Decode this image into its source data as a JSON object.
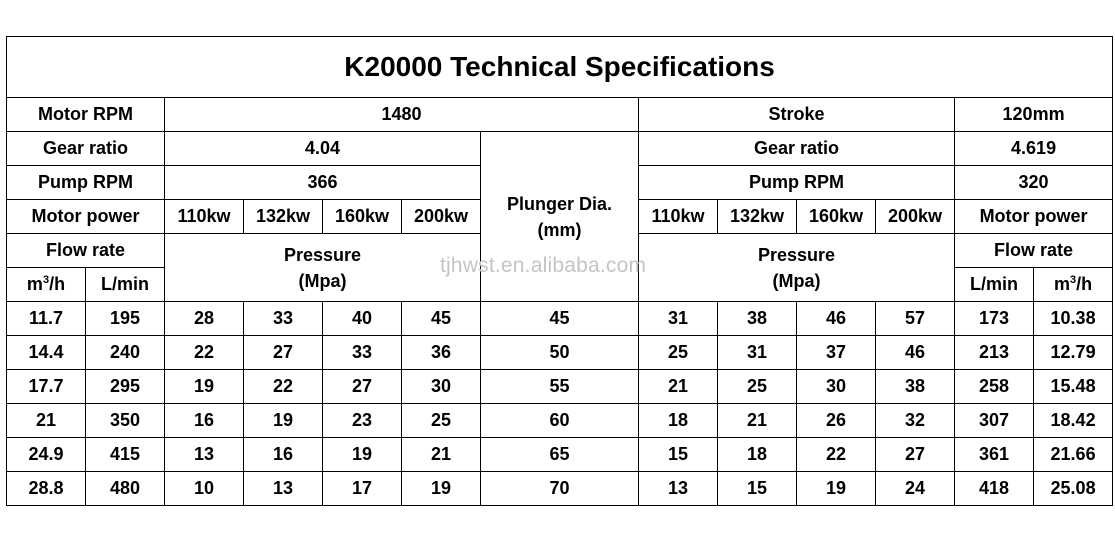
{
  "title": "K20000 Technical Specifications",
  "labels": {
    "motor_rpm": "Motor RPM",
    "stroke": "Stroke",
    "gear_ratio": "Gear ratio",
    "pump_rpm": "Pump RPM",
    "motor_power": "Motor power",
    "flow_rate": "Flow rate",
    "pressure_line1": "Pressure",
    "pressure_line2": "(Mpa)",
    "plunger_line1": "Plunger Dia.",
    "plunger_line2": "(mm)",
    "m3h_base": "m",
    "m3h_sup": "3",
    "m3h_tail": "/h",
    "lmin": "L/min"
  },
  "values": {
    "motor_rpm": "1480",
    "stroke": "120mm",
    "left_gear_ratio": "4.04",
    "right_gear_ratio": "4.619",
    "left_pump_rpm": "366",
    "right_pump_rpm": "320"
  },
  "power_levels": [
    "110kw",
    "132kw",
    "160kw",
    "200kw"
  ],
  "rows": [
    {
      "m3h": "11.7",
      "lmin": "195",
      "lp": [
        "28",
        "33",
        "40",
        "45"
      ],
      "dia": "45",
      "rp": [
        "31",
        "38",
        "46",
        "57"
      ],
      "rlmin": "173",
      "rm3h": "10.38"
    },
    {
      "m3h": "14.4",
      "lmin": "240",
      "lp": [
        "22",
        "27",
        "33",
        "36"
      ],
      "dia": "50",
      "rp": [
        "25",
        "31",
        "37",
        "46"
      ],
      "rlmin": "213",
      "rm3h": "12.79"
    },
    {
      "m3h": "17.7",
      "lmin": "295",
      "lp": [
        "19",
        "22",
        "27",
        "30"
      ],
      "dia": "55",
      "rp": [
        "21",
        "25",
        "30",
        "38"
      ],
      "rlmin": "258",
      "rm3h": "15.48"
    },
    {
      "m3h": "21",
      "lmin": "350",
      "lp": [
        "16",
        "19",
        "23",
        "25"
      ],
      "dia": "60",
      "rp": [
        "18",
        "21",
        "26",
        "32"
      ],
      "rlmin": "307",
      "rm3h": "18.42"
    },
    {
      "m3h": "24.9",
      "lmin": "415",
      "lp": [
        "13",
        "16",
        "19",
        "21"
      ],
      "dia": "65",
      "rp": [
        "15",
        "18",
        "22",
        "27"
      ],
      "rlmin": "361",
      "rm3h": "21.66"
    },
    {
      "m3h": "28.8",
      "lmin": "480",
      "lp": [
        "10",
        "13",
        "17",
        "19"
      ],
      "dia": "70",
      "rp": [
        "13",
        "15",
        "19",
        "24"
      ],
      "rlmin": "418",
      "rm3h": "25.08"
    }
  ],
  "watermark": "tjhwst.en.alibaba.com"
}
